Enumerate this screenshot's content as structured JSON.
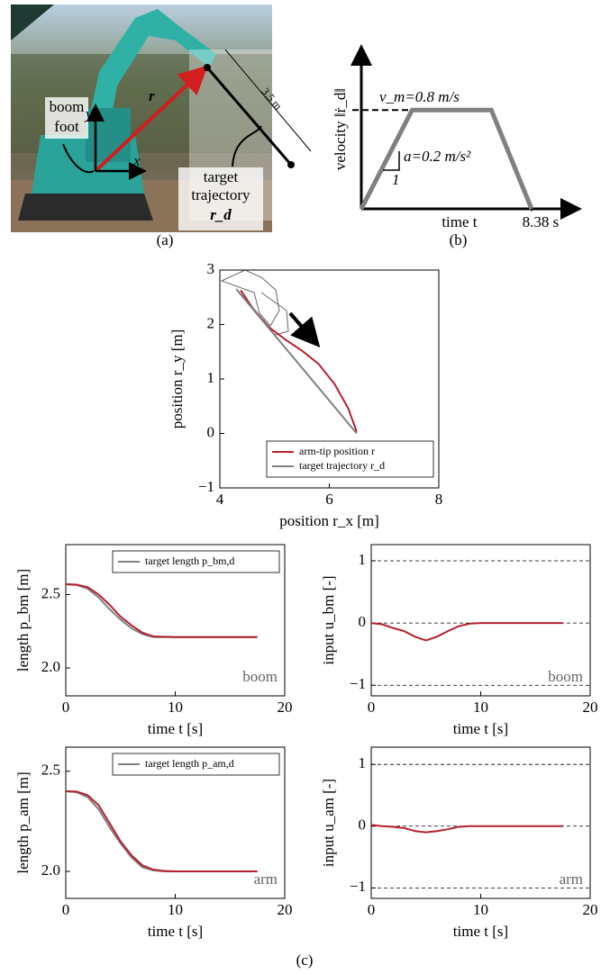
{
  "photo": {
    "boom_foot": [
      "boom",
      "foot"
    ],
    "axis_y": "y",
    "axis_x": "x",
    "vector_r": "r",
    "length": "3.5 m",
    "target": [
      "target",
      "trajectory",
      "r_d"
    ],
    "panel_label": "(a)"
  },
  "chart_data": [
    {
      "type": "line",
      "panel_label": "(b)",
      "frame": "arrows",
      "xlabel": "time t",
      "ylabel": "velocity ‖ṙ_d‖",
      "x": [
        0,
        2.5,
        6.4,
        8.38
      ],
      "series": [
        {
          "color": "#808080",
          "values": [
            0,
            0.8,
            0.8,
            0
          ]
        }
      ],
      "xlim": [
        0,
        10.6
      ],
      "ylim": [
        0,
        1.29
      ],
      "xticks": [
        {
          "value": 8.38,
          "label": "8.38 s"
        }
      ],
      "yticks": [
        {
          "value": 0.8,
          "label": "v_m=0.8 m/s"
        }
      ],
      "annotations": [
        "a=0.2 m/s²",
        "1"
      ]
    },
    {
      "type": "line",
      "frame": "box",
      "xlabel": "position r_x [m]",
      "ylabel": "position r_y [m]",
      "xlim": [
        4,
        8
      ],
      "ylim": [
        -1,
        3
      ],
      "xticks": [
        4,
        6,
        8
      ],
      "yticks": [
        {
          "value": -1,
          "label": "−1"
        },
        0,
        1,
        2,
        3
      ],
      "legend": "lower right",
      "series": [
        {
          "name": "arm-tip position r",
          "color": "#b5202e",
          "x": [
            4.38,
            4.6,
            4.9,
            5.2,
            5.5,
            5.8,
            6.1,
            6.35,
            6.5
          ],
          "values": [
            2.63,
            2.3,
            1.95,
            1.72,
            1.52,
            1.28,
            0.9,
            0.45,
            0.03
          ]
        },
        {
          "name": "target trajectory r_d",
          "color": "#808080",
          "x": [
            4.3,
            6.5
          ],
          "values": [
            2.65,
            0
          ]
        }
      ]
    },
    {
      "type": "line",
      "frame": "box",
      "xlabel": "time t [s]",
      "ylabel": "length p_bm [m]",
      "annotation": "boom",
      "legend": "upper right",
      "xlim": [
        0,
        20
      ],
      "ylim": [
        1.81,
        2.84
      ],
      "xticks": [
        0,
        10,
        20
      ],
      "yticks": [
        {
          "value": 2,
          "label": "2.0"
        },
        2.5
      ],
      "x": [
        0,
        1,
        2,
        3,
        4,
        5,
        6,
        7,
        8,
        9,
        10,
        12,
        14,
        16,
        17.5
      ],
      "series": [
        {
          "name": "target length p_bm,d",
          "color": "#808080",
          "values": [
            2.57,
            2.565,
            2.54,
            2.48,
            2.4,
            2.33,
            2.27,
            2.23,
            2.21,
            2.21,
            2.21,
            2.21,
            2.21,
            2.21,
            2.21
          ]
        },
        {
          "color": "#b5202e",
          "values": [
            2.57,
            2.567,
            2.55,
            2.5,
            2.43,
            2.35,
            2.29,
            2.24,
            2.215,
            2.212,
            2.21,
            2.21,
            2.21,
            2.21,
            2.21
          ]
        }
      ]
    },
    {
      "type": "line",
      "frame": "box",
      "ref_lines": "dashed",
      "xlabel": "time t [s]",
      "ylabel": "input u_bm [-]",
      "annotation": "boom",
      "xlim": [
        0,
        20
      ],
      "ylim": [
        -1.17,
        1.26
      ],
      "xticks": [
        0,
        10,
        20
      ],
      "yticks": [
        {
          "value": -1,
          "label": "−1"
        },
        0,
        1
      ],
      "x": [
        0,
        1,
        2,
        3,
        4,
        5,
        6,
        7,
        8,
        9,
        10,
        12,
        14,
        16,
        17.5
      ],
      "series": [
        {
          "color": "#b5202e",
          "values": [
            0,
            -0.02,
            -0.08,
            -0.13,
            -0.22,
            -0.28,
            -0.22,
            -0.13,
            -0.05,
            -0.01,
            0,
            0,
            0,
            0,
            0
          ]
        }
      ]
    },
    {
      "type": "line",
      "frame": "box",
      "xlabel": "time t [s]",
      "ylabel": "length p_am [m]",
      "annotation": "arm",
      "legend": "upper right",
      "xlim": [
        0,
        20
      ],
      "ylim": [
        1.865,
        2.62
      ],
      "xticks": [
        0,
        10,
        20
      ],
      "yticks": [
        {
          "value": 2,
          "label": "2.0"
        },
        2.5
      ],
      "x": [
        0,
        1,
        2,
        3,
        4,
        5,
        6,
        7,
        8,
        9,
        10,
        12,
        14,
        16,
        17.5
      ],
      "series": [
        {
          "name": "target length p_am,d",
          "color": "#808080",
          "values": [
            2.4,
            2.395,
            2.37,
            2.31,
            2.22,
            2.14,
            2.07,
            2.02,
            2.005,
            2,
            2,
            2,
            2,
            2,
            2
          ]
        },
        {
          "color": "#b5202e",
          "values": [
            2.4,
            2.398,
            2.38,
            2.33,
            2.24,
            2.15,
            2.08,
            2.03,
            2.008,
            2.002,
            2,
            2,
            2,
            2,
            2
          ]
        }
      ]
    },
    {
      "type": "line",
      "frame": "box",
      "ref_lines": "dashed",
      "xlabel": "time t [s]",
      "ylabel": "input u_am [-]",
      "annotation": "arm",
      "xlim": [
        0,
        20
      ],
      "ylim": [
        -1.17,
        1.28
      ],
      "xticks": [
        0,
        10,
        20
      ],
      "yticks": [
        {
          "value": -1,
          "label": "−1"
        },
        0,
        1
      ],
      "x": [
        0,
        1,
        2,
        3,
        4,
        5,
        6,
        7,
        8,
        9,
        10,
        12,
        14,
        16,
        17.5
      ],
      "series": [
        {
          "color": "#b5202e",
          "values": [
            0.02,
            0,
            -0.01,
            -0.03,
            -0.08,
            -0.1,
            -0.08,
            -0.05,
            -0.01,
            0,
            0,
            0,
            0,
            0,
            0
          ]
        }
      ]
    }
  ],
  "figure_labels": {
    "c": "(c)"
  }
}
